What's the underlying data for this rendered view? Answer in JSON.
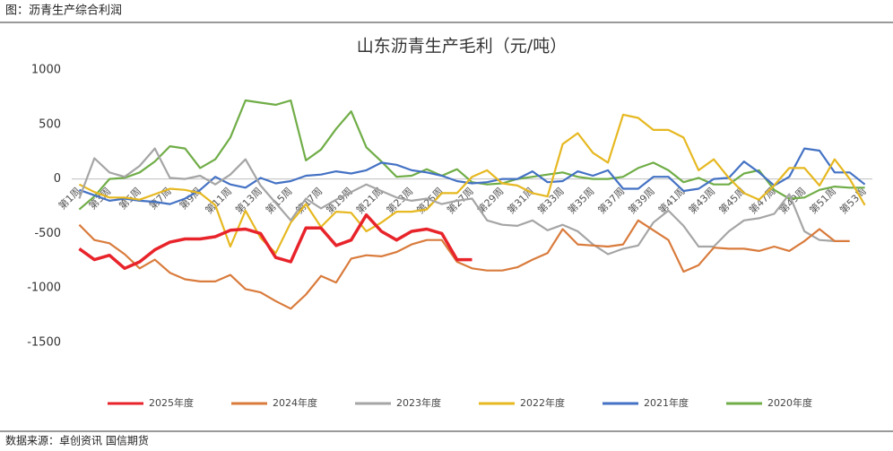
{
  "header": "图：沥青生产综合利润",
  "source": "数据来源：卓创资讯 国信期货",
  "chart_data": {
    "type": "line",
    "title": "山东沥青生产毛利（元/吨）",
    "categories": [
      "第1周",
      null,
      "第3周",
      null,
      "第5周",
      null,
      "第7周",
      null,
      "第9周",
      null,
      "第11周",
      null,
      "第13周",
      null,
      "第15周",
      null,
      "第17周",
      null,
      "第19周",
      null,
      "第21周",
      null,
      "第23周",
      null,
      "第25周",
      null,
      "第27周",
      null,
      "第29周",
      null,
      "第31周",
      null,
      "第33周",
      null,
      "第35周",
      null,
      "第37周",
      null,
      "第39周",
      null,
      "第41周",
      null,
      "第43周",
      null,
      "第45周",
      null,
      "第47周",
      null,
      "第49周",
      null,
      "第51周",
      null,
      "第53周"
    ],
    "ylim": [
      -1500,
      1000
    ],
    "yticks": [
      -1500,
      -1000,
      -500,
      0,
      500,
      1000
    ],
    "legend": "bottom",
    "series": [
      {
        "name": "2025年度",
        "color": "#e8242b",
        "values": [
          -640,
          -740,
          -700,
          -820,
          -760,
          -650,
          -580,
          -550,
          -550,
          -530,
          -470,
          -460,
          -500,
          -720,
          -760,
          -450,
          -450,
          -610,
          -560,
          -330,
          -480,
          -560,
          -480,
          -460,
          -500,
          -740,
          -740,
          null,
          null,
          null,
          null,
          null,
          null,
          null,
          null,
          null,
          null,
          null,
          null,
          null,
          null,
          null,
          null,
          null,
          null,
          null,
          null,
          null,
          null,
          null,
          null,
          null,
          null
        ]
      },
      {
        "name": "2024年度",
        "color": "#d97b3c",
        "values": [
          -420,
          -560,
          -590,
          -690,
          -820,
          -740,
          -860,
          -920,
          -940,
          -940,
          -880,
          -1010,
          -1040,
          -1120,
          -1190,
          -1060,
          -890,
          -950,
          -730,
          -700,
          -710,
          -670,
          -600,
          -560,
          -560,
          -760,
          -820,
          -840,
          -840,
          -810,
          -740,
          -680,
          -460,
          -600,
          -610,
          -620,
          -600,
          -380,
          -470,
          -560,
          -850,
          -790,
          -630,
          -640,
          -640,
          -660,
          -620,
          -660,
          -570,
          -460,
          -570,
          -570,
          null
        ]
      },
      {
        "name": "2023年度",
        "color": "#a5a5a5",
        "values": [
          -180,
          190,
          60,
          20,
          120,
          280,
          10,
          0,
          30,
          -50,
          40,
          180,
          -60,
          -220,
          -380,
          -180,
          -270,
          -190,
          -120,
          -50,
          -110,
          -170,
          -200,
          -180,
          -230,
          -200,
          -180,
          -380,
          -420,
          -430,
          -380,
          -470,
          -420,
          -480,
          -600,
          -690,
          -640,
          -610,
          -400,
          -290,
          -430,
          -620,
          -620,
          -480,
          -380,
          -360,
          -320,
          -140,
          -480,
          -560,
          -570,
          null,
          null
        ]
      },
      {
        "name": "2022年度",
        "color": "#e6b821",
        "values": [
          -50,
          -120,
          -170,
          -170,
          -190,
          -140,
          -90,
          -100,
          -130,
          -240,
          -620,
          -290,
          -540,
          -680,
          -400,
          -230,
          -440,
          -300,
          -310,
          -480,
          -400,
          -300,
          -300,
          -280,
          -130,
          -130,
          20,
          80,
          -40,
          -60,
          -130,
          -160,
          320,
          420,
          240,
          150,
          590,
          560,
          450,
          450,
          380,
          80,
          180,
          10,
          -130,
          -190,
          -60,
          100,
          100,
          -60,
          180,
          0,
          -240
        ]
      },
      {
        "name": "2021年度",
        "color": "#4472c4",
        "values": [
          -100,
          -150,
          -200,
          -180,
          -200,
          -210,
          -230,
          -180,
          -100,
          20,
          -50,
          -80,
          10,
          -40,
          -20,
          30,
          40,
          70,
          50,
          80,
          150,
          130,
          80,
          60,
          30,
          -20,
          -40,
          -30,
          0,
          0,
          70,
          -30,
          -20,
          70,
          30,
          80,
          -90,
          -90,
          20,
          20,
          -110,
          -90,
          0,
          10,
          160,
          60,
          -60,
          20,
          280,
          260,
          60,
          60,
          -50
        ]
      },
      {
        "name": "2020年度",
        "color": "#70ad47",
        "values": [
          -280,
          -160,
          0,
          10,
          60,
          160,
          300,
          280,
          100,
          180,
          380,
          720,
          700,
          680,
          720,
          170,
          270,
          460,
          620,
          290,
          160,
          20,
          30,
          90,
          30,
          90,
          -30,
          -50,
          -40,
          0,
          20,
          40,
          60,
          20,
          0,
          0,
          20,
          100,
          150,
          80,
          -30,
          10,
          -50,
          -50,
          50,
          80,
          -100,
          -180,
          -170,
          -100,
          -70,
          -80,
          -80
        ]
      }
    ]
  }
}
